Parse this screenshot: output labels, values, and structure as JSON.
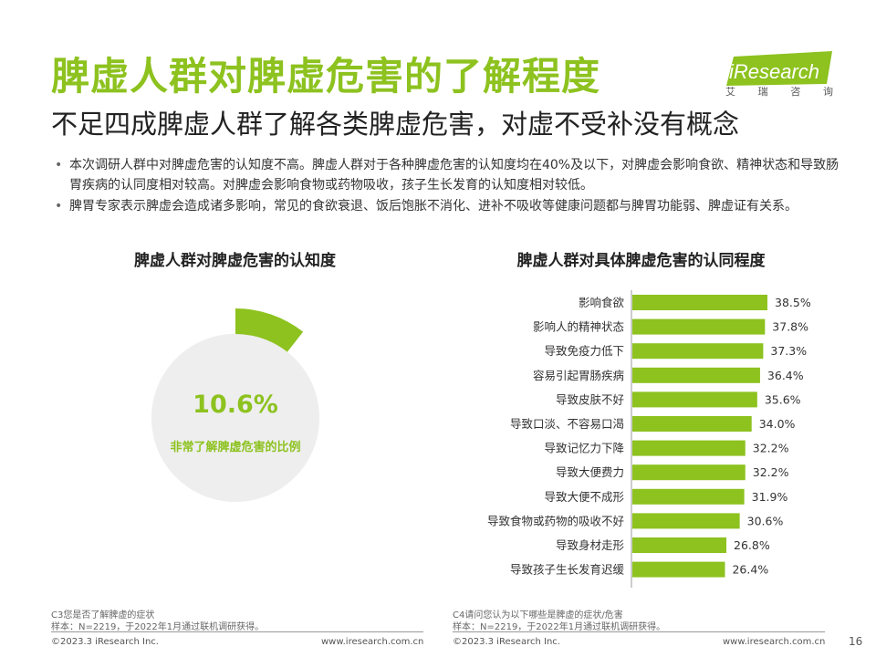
{
  "header": {
    "title": "脾虚人群对脾虚危害的了解程度",
    "subtitle": "不足四成脾虚人群了解各类脾虚危害，对虚不受补没有概念"
  },
  "logo": {
    "brand": "iResearch",
    "tagline": [
      "艾",
      "瑞",
      "咨",
      "询"
    ],
    "accent": "#8dc21f"
  },
  "bullets": [
    "本次调研人群中对脾虚危害的认知度不高。脾虚人群对于各种脾虚危害的认知度均在40%及以下，对脾虚会影响食欲、精神状态和导致肠胃疾病的认同度相对较高。对脾虚会影响食物或药物吸收，孩子生长发育的认知度相对较低。",
    "脾胃专家表示脾虚会造成诸多影响，常见的食欲衰退、饭后饱胀不消化、进补不吸收等健康问题都与脾胃功能弱、脾虚证有关系。"
  ],
  "left_panel": {
    "title": "脾虚人群对脾虚危害的认知度",
    "value_label": "10.6%",
    "caption": "非常了解脾虚危害的比例"
  },
  "right_panel": {
    "title": "脾虚人群对具体脾虚危害的认同程度"
  },
  "chart_data": [
    {
      "type": "pie",
      "title": "脾虚人群对脾虚危害的认知度",
      "slices": [
        {
          "label": "非常了解脾虚危害的比例",
          "value": 10.6,
          "color": "#8dc21f"
        },
        {
          "label": "",
          "value": 89.4,
          "color": "#eeeeee"
        }
      ]
    },
    {
      "type": "bar",
      "orientation": "horizontal",
      "title": "脾虚人群对具体脾虚危害的认同程度",
      "categories": [
        "影响食欲",
        "影响人的精神状态",
        "导致免疫力低下",
        "容易引起胃肠疾病",
        "导致皮肤不好",
        "导致口淡、不容易口渴",
        "导致记忆力下降",
        "导致大便费力",
        "导致大便不成形",
        "导致食物或药物的吸收不好",
        "导致身材走形",
        "导致孩子生长发育迟缓"
      ],
      "values": [
        38.5,
        37.8,
        37.3,
        36.4,
        35.6,
        34.0,
        32.2,
        32.2,
        31.9,
        30.6,
        26.8,
        26.4
      ],
      "value_labels": [
        "38.5%",
        "37.8%",
        "37.3%",
        "36.4%",
        "35.6%",
        "34.0%",
        "32.2%",
        "32.2%",
        "31.9%",
        "30.6%",
        "26.8%",
        "26.4%"
      ],
      "color": "#8dc21f",
      "xlim": [
        0,
        42
      ]
    }
  ],
  "notes": {
    "left": [
      "C3您是否了解脾虚的症状",
      "样本：N=2219，于2022年1月通过联机调研获得。"
    ],
    "right": [
      "C4请问您认为以下哪些是脾虚的症状/危害",
      "样本：N=2219，于2022年1月通过联机调研获得。"
    ]
  },
  "footer": {
    "copyright": "©2023.3 iResearch Inc.",
    "url": "www.iresearch.com.cn",
    "page_number": "16"
  }
}
